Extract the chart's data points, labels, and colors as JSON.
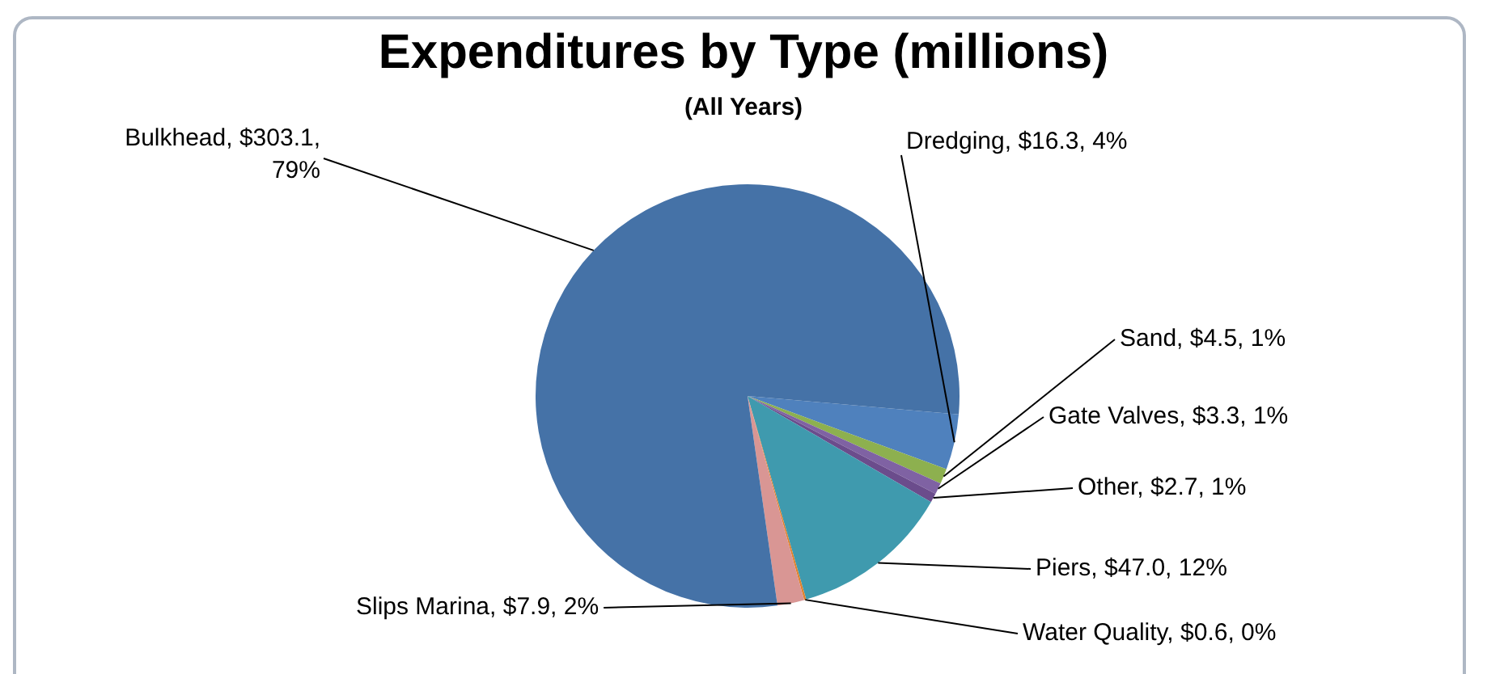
{
  "chart_data": {
    "type": "pie",
    "title": "Expenditures by Type (millions)",
    "subtitle": "(All Years)",
    "categories": [
      "Dredging",
      "Sand",
      "Gate Valves",
      "Other",
      "Piers",
      "Water Quality",
      "Slips Marina",
      "Bulkhead"
    ],
    "values": [
      16.3,
      4.5,
      3.3,
      2.7,
      47.0,
      0.6,
      7.9,
      303.1
    ],
    "colors": [
      "#4f81bd",
      "#8db04f",
      "#7f62a3",
      "#6b4c8c",
      "#3f9aae",
      "#e0822d",
      "#d99694",
      "#4572a7"
    ],
    "value_labels": [
      "$16.3, 4%",
      "$4.5, 1%",
      "$3.3, 1%",
      "$2.7, 1%",
      "$47.0, 12%",
      "$0.6, 0%",
      "$7.9, 2%",
      "$303.1, 79%"
    ],
    "legend": false
  }
}
